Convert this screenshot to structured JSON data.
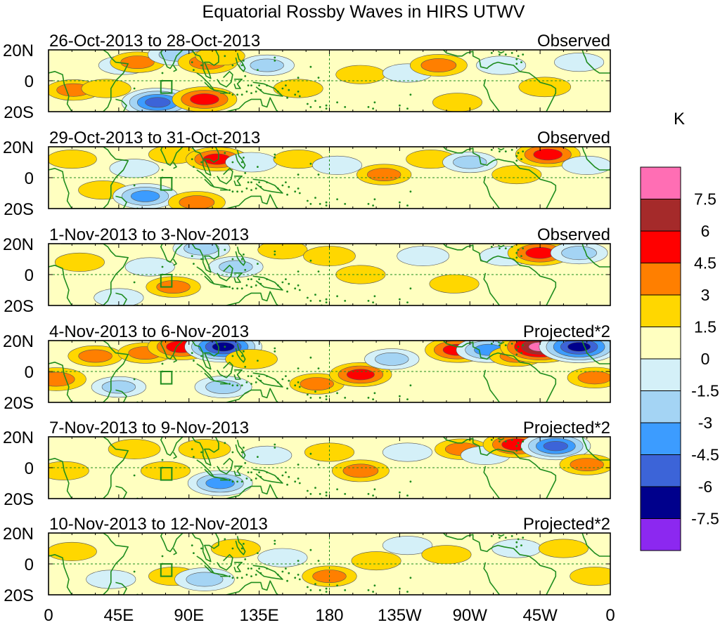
{
  "chart_data": {
    "type": "heatmap",
    "title": "Equatorial Rossby Waves in HIRS UTWV",
    "units": "K",
    "x_ticks": [
      "0",
      "45E",
      "90E",
      "135E",
      "180",
      "135W",
      "90W",
      "45W",
      "0"
    ],
    "x_tick_lons": [
      0,
      45,
      90,
      135,
      180,
      225,
      270,
      315,
      360
    ],
    "y_ticks": [
      "20N",
      "0",
      "20S"
    ],
    "y_tick_lats": [
      20,
      0,
      -20
    ],
    "lon_range": [
      0,
      360
    ],
    "lat_range": [
      -20,
      20
    ],
    "colorbar": {
      "labels": [
        "7.5",
        "6",
        "4.5",
        "3",
        "1.5",
        "0",
        "-1.5",
        "-3",
        "-4.5",
        "-6",
        "-7.5"
      ],
      "colors": [
        "#ff6eb4",
        "#a52a2a",
        "#ff0000",
        "#ff7f00",
        "#ffd700",
        "#ffffc0",
        "#d4f0f8",
        "#a4d4f4",
        "#3c9cff",
        "#3c64d8",
        "#00008c",
        "#8c28f0"
      ]
    },
    "panels": [
      {
        "date_range": "26-Oct-2013 to 28-Oct-2013",
        "type_label": "Observed",
        "features": [
          {
            "lon": 16,
            "lat": -6,
            "v": 3
          },
          {
            "lon": 37,
            "lat": -5,
            "v": 2
          },
          {
            "lon": 48,
            "lat": 10,
            "v": -2
          },
          {
            "lon": 57,
            "lat": 12,
            "v": 3
          },
          {
            "lon": 70,
            "lat": -14,
            "v": -6.5
          },
          {
            "lon": 82,
            "lat": 17,
            "v": -3.5
          },
          {
            "lon": 100,
            "lat": -12,
            "v": 5
          },
          {
            "lon": 102,
            "lat": 12,
            "v": 4
          },
          {
            "lon": 110,
            "lat": 16,
            "v": 2
          },
          {
            "lon": 140,
            "lat": 10,
            "v": -3
          },
          {
            "lon": 160,
            "lat": -5,
            "v": 2
          },
          {
            "lon": 200,
            "lat": 4,
            "v": 2
          },
          {
            "lon": 230,
            "lat": 5,
            "v": -2
          },
          {
            "lon": 250,
            "lat": 10,
            "v": 3.5
          },
          {
            "lon": 262,
            "lat": -14,
            "v": 2
          },
          {
            "lon": 290,
            "lat": 10,
            "v": -2
          },
          {
            "lon": 318,
            "lat": -4,
            "v": 2.5
          },
          {
            "lon": 340,
            "lat": 12,
            "v": -2
          }
        ]
      },
      {
        "date_range": "29-Oct-2013 to 31-Oct-2013",
        "type_label": "Observed",
        "features": [
          {
            "lon": 15,
            "lat": 12,
            "v": 2
          },
          {
            "lon": 35,
            "lat": -8,
            "v": 2
          },
          {
            "lon": 55,
            "lat": 6,
            "v": -2
          },
          {
            "lon": 62,
            "lat": -12,
            "v": -5
          },
          {
            "lon": 80,
            "lat": 15,
            "v": 2
          },
          {
            "lon": 95,
            "lat": -16,
            "v": 3.5
          },
          {
            "lon": 108,
            "lat": 12,
            "v": 4.5
          },
          {
            "lon": 130,
            "lat": 10,
            "v": -2.5
          },
          {
            "lon": 160,
            "lat": 12,
            "v": 2
          },
          {
            "lon": 185,
            "lat": 8,
            "v": -2
          },
          {
            "lon": 215,
            "lat": 2,
            "v": 3
          },
          {
            "lon": 245,
            "lat": 12,
            "v": 2
          },
          {
            "lon": 270,
            "lat": 10,
            "v": -3
          },
          {
            "lon": 300,
            "lat": 2,
            "v": 2
          },
          {
            "lon": 320,
            "lat": 15,
            "v": 5
          },
          {
            "lon": 345,
            "lat": 8,
            "v": -2
          }
        ]
      },
      {
        "date_range": "1-Nov-2013 to 3-Nov-2013",
        "type_label": "Observed",
        "features": [
          {
            "lon": 20,
            "lat": 8,
            "v": 2
          },
          {
            "lon": 45,
            "lat": -15,
            "v": -2
          },
          {
            "lon": 65,
            "lat": 5,
            "v": -2
          },
          {
            "lon": 80,
            "lat": -8,
            "v": 3
          },
          {
            "lon": 98,
            "lat": 17,
            "v": -3.5
          },
          {
            "lon": 120,
            "lat": 5,
            "v": -3
          },
          {
            "lon": 150,
            "lat": 16,
            "v": 2
          },
          {
            "lon": 180,
            "lat": 12,
            "v": 2.5
          },
          {
            "lon": 200,
            "lat": 0,
            "v": 2
          },
          {
            "lon": 240,
            "lat": 12,
            "v": -2.5
          },
          {
            "lon": 260,
            "lat": -6,
            "v": 2
          },
          {
            "lon": 293,
            "lat": 12,
            "v": -2.5
          },
          {
            "lon": 315,
            "lat": 14,
            "v": 5
          },
          {
            "lon": 340,
            "lat": 14,
            "v": -3.5
          }
        ]
      },
      {
        "date_range": "4-Nov-2013 to 6-Nov-2013",
        "type_label": "Projected*2",
        "features": [
          {
            "lon": 5,
            "lat": -5,
            "v": 4
          },
          {
            "lon": 30,
            "lat": 10,
            "v": 3
          },
          {
            "lon": 45,
            "lat": -10,
            "v": -3
          },
          {
            "lon": 62,
            "lat": 12,
            "v": 3
          },
          {
            "lon": 85,
            "lat": 16,
            "v": 5.5
          },
          {
            "lon": 112,
            "lat": 16,
            "v": -7.5
          },
          {
            "lon": 112,
            "lat": -10,
            "v": -3.5
          },
          {
            "lon": 130,
            "lat": 8,
            "v": 2.5
          },
          {
            "lon": 172,
            "lat": -8,
            "v": 3
          },
          {
            "lon": 200,
            "lat": -2,
            "v": 4.5
          },
          {
            "lon": 220,
            "lat": 8,
            "v": -3
          },
          {
            "lon": 262,
            "lat": 14,
            "v": 5
          },
          {
            "lon": 282,
            "lat": 14,
            "v": -5
          },
          {
            "lon": 300,
            "lat": 10,
            "v": 3
          },
          {
            "lon": 315,
            "lat": 16,
            "v": 8
          },
          {
            "lon": 340,
            "lat": 16,
            "v": -8
          },
          {
            "lon": 350,
            "lat": -4,
            "v": 3
          }
        ]
      },
      {
        "date_range": "7-Nov-2013 to 9-Nov-2013",
        "type_label": "Projected*2",
        "features": [
          {
            "lon": 10,
            "lat": -2,
            "v": 2
          },
          {
            "lon": 55,
            "lat": 12,
            "v": 2.5
          },
          {
            "lon": 75,
            "lat": -2,
            "v": 2
          },
          {
            "lon": 100,
            "lat": 12,
            "v": 2.5
          },
          {
            "lon": 110,
            "lat": -10,
            "v": -5
          },
          {
            "lon": 140,
            "lat": 8,
            "v": -2
          },
          {
            "lon": 180,
            "lat": 10,
            "v": 2
          },
          {
            "lon": 200,
            "lat": -2,
            "v": 3.5
          },
          {
            "lon": 230,
            "lat": 10,
            "v": -2
          },
          {
            "lon": 265,
            "lat": 12,
            "v": 3
          },
          {
            "lon": 280,
            "lat": 8,
            "v": -2
          },
          {
            "lon": 300,
            "lat": 15,
            "v": 5.5
          },
          {
            "lon": 325,
            "lat": 14,
            "v": -6
          },
          {
            "lon": 345,
            "lat": 2,
            "v": 3
          }
        ]
      },
      {
        "date_range": "10-Nov-2013 to 12-Nov-2013",
        "type_label": "Projected*2",
        "features": [
          {
            "lon": 15,
            "lat": 8,
            "v": 2
          },
          {
            "lon": 40,
            "lat": -10,
            "v": -2
          },
          {
            "lon": 80,
            "lat": -8,
            "v": 2
          },
          {
            "lon": 100,
            "lat": -10,
            "v": -4
          },
          {
            "lon": 120,
            "lat": 10,
            "v": 2
          },
          {
            "lon": 150,
            "lat": 4,
            "v": -2
          },
          {
            "lon": 180,
            "lat": -8,
            "v": 3
          },
          {
            "lon": 210,
            "lat": 2,
            "v": 2
          },
          {
            "lon": 230,
            "lat": 12,
            "v": -2
          },
          {
            "lon": 255,
            "lat": 6,
            "v": 2
          },
          {
            "lon": 300,
            "lat": 10,
            "v": -2
          },
          {
            "lon": 330,
            "lat": 10,
            "v": 2
          },
          {
            "lon": 350,
            "lat": -8,
            "v": 2
          }
        ]
      }
    ]
  }
}
